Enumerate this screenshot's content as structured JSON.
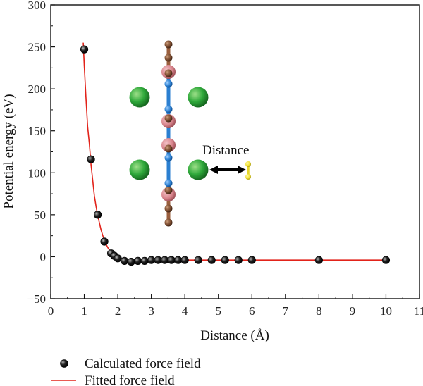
{
  "chart_data": {
    "type": "scatter",
    "xlabel": "Distance (Å)",
    "ylabel": "Potential energy (eV)",
    "xlim": [
      0,
      11
    ],
    "ylim": [
      -50,
      300
    ],
    "x_ticks": [
      0,
      1,
      2,
      3,
      4,
      5,
      6,
      7,
      8,
      9,
      10,
      11
    ],
    "y_ticks": [
      -50,
      0,
      50,
      100,
      150,
      200,
      250,
      300
    ],
    "x_tick_labels": [
      "0",
      "1",
      "2",
      "3",
      "4",
      "5",
      "6",
      "7",
      "8",
      "9",
      "10",
      "11"
    ],
    "y_tick_labels": [
      "−50",
      "0",
      "50",
      "100",
      "150",
      "200",
      "250",
      "300"
    ],
    "grid": false,
    "legend_placement": "bottom-left, below plot",
    "series": [
      {
        "name": "Calculated force field",
        "kind": "scatter",
        "color": "#111111",
        "x": [
          1.0,
          1.2,
          1.4,
          1.6,
          1.8,
          1.9,
          2.0,
          2.2,
          2.4,
          2.6,
          2.8,
          3.0,
          3.2,
          3.4,
          3.6,
          3.8,
          4.0,
          4.4,
          4.8,
          5.2,
          5.6,
          6.0,
          8.0,
          10.0
        ],
        "y": [
          247,
          116,
          50,
          18,
          4,
          1,
          -2,
          -5,
          -6,
          -5,
          -5,
          -4,
          -4,
          -4,
          -4,
          -4,
          -4,
          -4,
          -4,
          -4,
          -4,
          -4,
          -4,
          -4
        ]
      },
      {
        "name": "Fitted force field",
        "kind": "line",
        "color": "#e2231a",
        "x": [
          0.97,
          1.0,
          1.05,
          1.1,
          1.15,
          1.2,
          1.25,
          1.3,
          1.35,
          1.4,
          1.5,
          1.6,
          1.7,
          1.8,
          1.9,
          2.0,
          2.1,
          2.2,
          2.4,
          2.6,
          3.0,
          4.0,
          6.0,
          8.0,
          10.0
        ],
        "y": [
          255,
          228,
          190,
          155,
          135,
          110,
          92,
          73,
          60,
          49,
          32,
          19,
          11,
          5,
          1,
          -2,
          -4,
          -5,
          -5.5,
          -5,
          -4.5,
          -4,
          -4,
          -4,
          -4
        ]
      }
    ],
    "inset": {
      "annotation": "Distance",
      "colors": {
        "chlorine": "#2ea83a",
        "carbon": "#7a4a2e",
        "nitrogen": "#2b7fd1",
        "halo": "#d9868e",
        "probe": "#f0e030"
      }
    }
  },
  "legend": {
    "items": [
      {
        "label": "Calculated force field"
      },
      {
        "label": "Fitted force field"
      }
    ]
  }
}
